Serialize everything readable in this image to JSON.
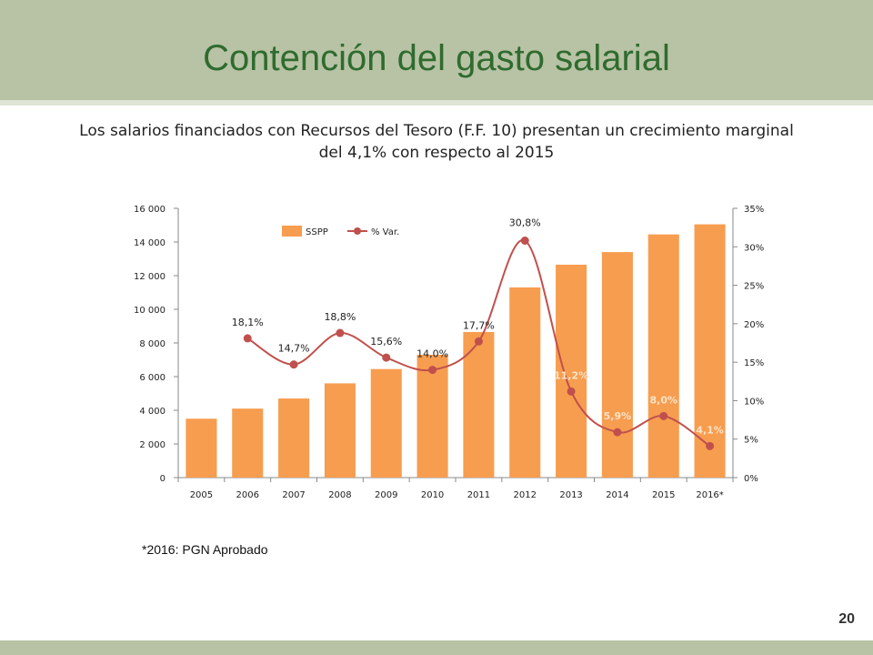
{
  "slide": {
    "title": "Contención del gasto salarial",
    "subtitle": "Los salarios financiados con Recursos del Tesoro (F.F. 10) presentan un crecimiento marginal del 4,1% con respecto al 2015",
    "footnote": "*2016: PGN Aprobado",
    "page_number": "20"
  },
  "colors": {
    "header": "#b7c3a4",
    "title": "#2f6b2f",
    "bar": "#f79d4f",
    "line": "#c0504d"
  },
  "chart_data": {
    "type": "bar",
    "categories": [
      "2005",
      "2006",
      "2007",
      "2008",
      "2009",
      "2010",
      "2011",
      "2012",
      "2013",
      "2014",
      "2015",
      "2016*"
    ],
    "series": [
      {
        "name": "SSPP",
        "type": "bar",
        "axis": "left",
        "values": [
          3500,
          4100,
          4700,
          5600,
          6450,
          7300,
          8650,
          11300,
          12650,
          13400,
          14450,
          15050
        ]
      },
      {
        "name": "% Var.",
        "type": "line",
        "axis": "right",
        "x": [
          "2006",
          "2007",
          "2008",
          "2009",
          "2010",
          "2011",
          "2012",
          "2013",
          "2014",
          "2015",
          "2016*"
        ],
        "values": [
          18.1,
          14.7,
          18.8,
          15.6,
          14.0,
          17.7,
          30.8,
          11.2,
          5.9,
          8.0,
          4.1
        ],
        "labels": [
          "18,1%",
          "14,7%",
          "18,8%",
          "15,6%",
          "14,0%",
          "17,7%",
          "30,8%",
          "11,2%",
          "5,9%",
          "8,0%",
          "4,1%"
        ]
      }
    ],
    "y_left": {
      "ylim": [
        0,
        16000
      ],
      "ticks": [
        0,
        2000,
        4000,
        6000,
        8000,
        10000,
        12000,
        14000,
        16000
      ],
      "tick_labels": [
        "0",
        "2 000",
        "4 000",
        "6 000",
        "8 000",
        "10 000",
        "12 000",
        "14 000",
        "16 000"
      ]
    },
    "y_right": {
      "ylim": [
        0,
        35
      ],
      "ticks": [
        0,
        5,
        10,
        15,
        20,
        25,
        30,
        35
      ],
      "tick_labels": [
        "0%",
        "5%",
        "10%",
        "15%",
        "20%",
        "25%",
        "30%",
        "35%"
      ]
    },
    "legend": {
      "placement": "top-left",
      "entries": [
        "SSPP",
        "% Var."
      ]
    },
    "grid": false
  }
}
